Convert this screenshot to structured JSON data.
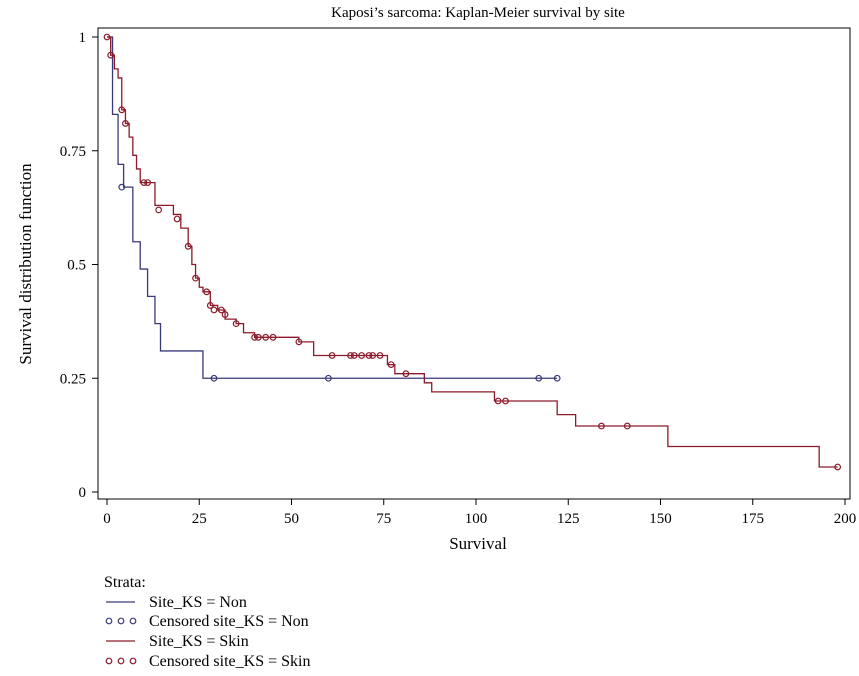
{
  "chart_data": {
    "type": "line",
    "title": "Kaposi’s sarcoma: Kaplan-Meier survival by site",
    "xlabel": "Survival",
    "ylabel": "Survival distribution function",
    "xlim": [
      0,
      200
    ],
    "ylim": [
      0,
      1
    ],
    "xticks": [
      0,
      25,
      50,
      75,
      100,
      125,
      150,
      175,
      200
    ],
    "yticks": [
      0,
      0.25,
      0.5,
      0.75,
      1
    ],
    "ytick_labels": [
      "0",
      "0.25",
      "0.5",
      "0.75",
      "1"
    ],
    "grid": false,
    "legend_placement": "bottom-left",
    "legend_title": "Strata:",
    "series": [
      {
        "name": "Site_KS = Non",
        "color": "#3a3a7a",
        "steps": [
          [
            0,
            1.0
          ],
          [
            1.5,
            0.83
          ],
          [
            3,
            0.72
          ],
          [
            4.5,
            0.67
          ],
          [
            7,
            0.55
          ],
          [
            9,
            0.49
          ],
          [
            11,
            0.43
          ],
          [
            13,
            0.37
          ],
          [
            14.5,
            0.31
          ],
          [
            26,
            0.25
          ],
          [
            122,
            0.25
          ]
        ],
        "censored": [
          [
            4,
            0.67
          ],
          [
            29,
            0.25
          ],
          [
            60,
            0.25
          ],
          [
            117,
            0.25
          ],
          [
            122,
            0.25
          ]
        ]
      },
      {
        "name": "Site_KS = Skin",
        "color": "#8b1a2a",
        "steps": [
          [
            0,
            1.0
          ],
          [
            1,
            0.96
          ],
          [
            2,
            0.93
          ],
          [
            3,
            0.91
          ],
          [
            4,
            0.84
          ],
          [
            5,
            0.81
          ],
          [
            6,
            0.78
          ],
          [
            7,
            0.74
          ],
          [
            8,
            0.71
          ],
          [
            9,
            0.68
          ],
          [
            13,
            0.63
          ],
          [
            18,
            0.61
          ],
          [
            20,
            0.58
          ],
          [
            22,
            0.54
          ],
          [
            23,
            0.5
          ],
          [
            24,
            0.47
          ],
          [
            25,
            0.45
          ],
          [
            26,
            0.44
          ],
          [
            28,
            0.41
          ],
          [
            30,
            0.4
          ],
          [
            32,
            0.38
          ],
          [
            35,
            0.37
          ],
          [
            37,
            0.35
          ],
          [
            40,
            0.34
          ],
          [
            52,
            0.33
          ],
          [
            56,
            0.3
          ],
          [
            74,
            0.3
          ],
          [
            76,
            0.28
          ],
          [
            78,
            0.26
          ],
          [
            86,
            0.24
          ],
          [
            88,
            0.22
          ],
          [
            105,
            0.2
          ],
          [
            122,
            0.17
          ],
          [
            127,
            0.145
          ],
          [
            152,
            0.1
          ],
          [
            193,
            0.055
          ],
          [
            198,
            0.055
          ]
        ],
        "censored": [
          [
            0,
            1.0
          ],
          [
            1,
            0.96
          ],
          [
            4,
            0.84
          ],
          [
            5,
            0.81
          ],
          [
            10,
            0.68
          ],
          [
            11,
            0.68
          ],
          [
            14,
            0.62
          ],
          [
            19,
            0.6
          ],
          [
            22,
            0.54
          ],
          [
            24,
            0.47
          ],
          [
            27,
            0.44
          ],
          [
            28,
            0.41
          ],
          [
            29,
            0.4
          ],
          [
            31,
            0.4
          ],
          [
            32,
            0.39
          ],
          [
            35,
            0.37
          ],
          [
            40,
            0.34
          ],
          [
            41,
            0.34
          ],
          [
            43,
            0.34
          ],
          [
            45,
            0.34
          ],
          [
            52,
            0.33
          ],
          [
            61,
            0.3
          ],
          [
            66,
            0.3
          ],
          [
            67,
            0.3
          ],
          [
            69,
            0.3
          ],
          [
            71,
            0.3
          ],
          [
            72,
            0.3
          ],
          [
            74,
            0.3
          ],
          [
            77,
            0.28
          ],
          [
            81,
            0.26
          ],
          [
            106,
            0.2
          ],
          [
            108,
            0.2
          ],
          [
            134,
            0.145
          ],
          [
            141,
            0.145
          ],
          [
            198,
            0.055
          ]
        ]
      }
    ],
    "legend_entries": [
      {
        "label": "Site_KS = Non",
        "kind": "line",
        "color": "#3a3a7a"
      },
      {
        "label": "Censored site_KS = Non",
        "kind": "circles",
        "color": "#3a3a7a"
      },
      {
        "label": "Site_KS = Skin",
        "kind": "line",
        "color": "#8b1a2a"
      },
      {
        "label": "Censored site_KS = Skin",
        "kind": "circles",
        "color": "#8b1a2a"
      }
    ]
  }
}
